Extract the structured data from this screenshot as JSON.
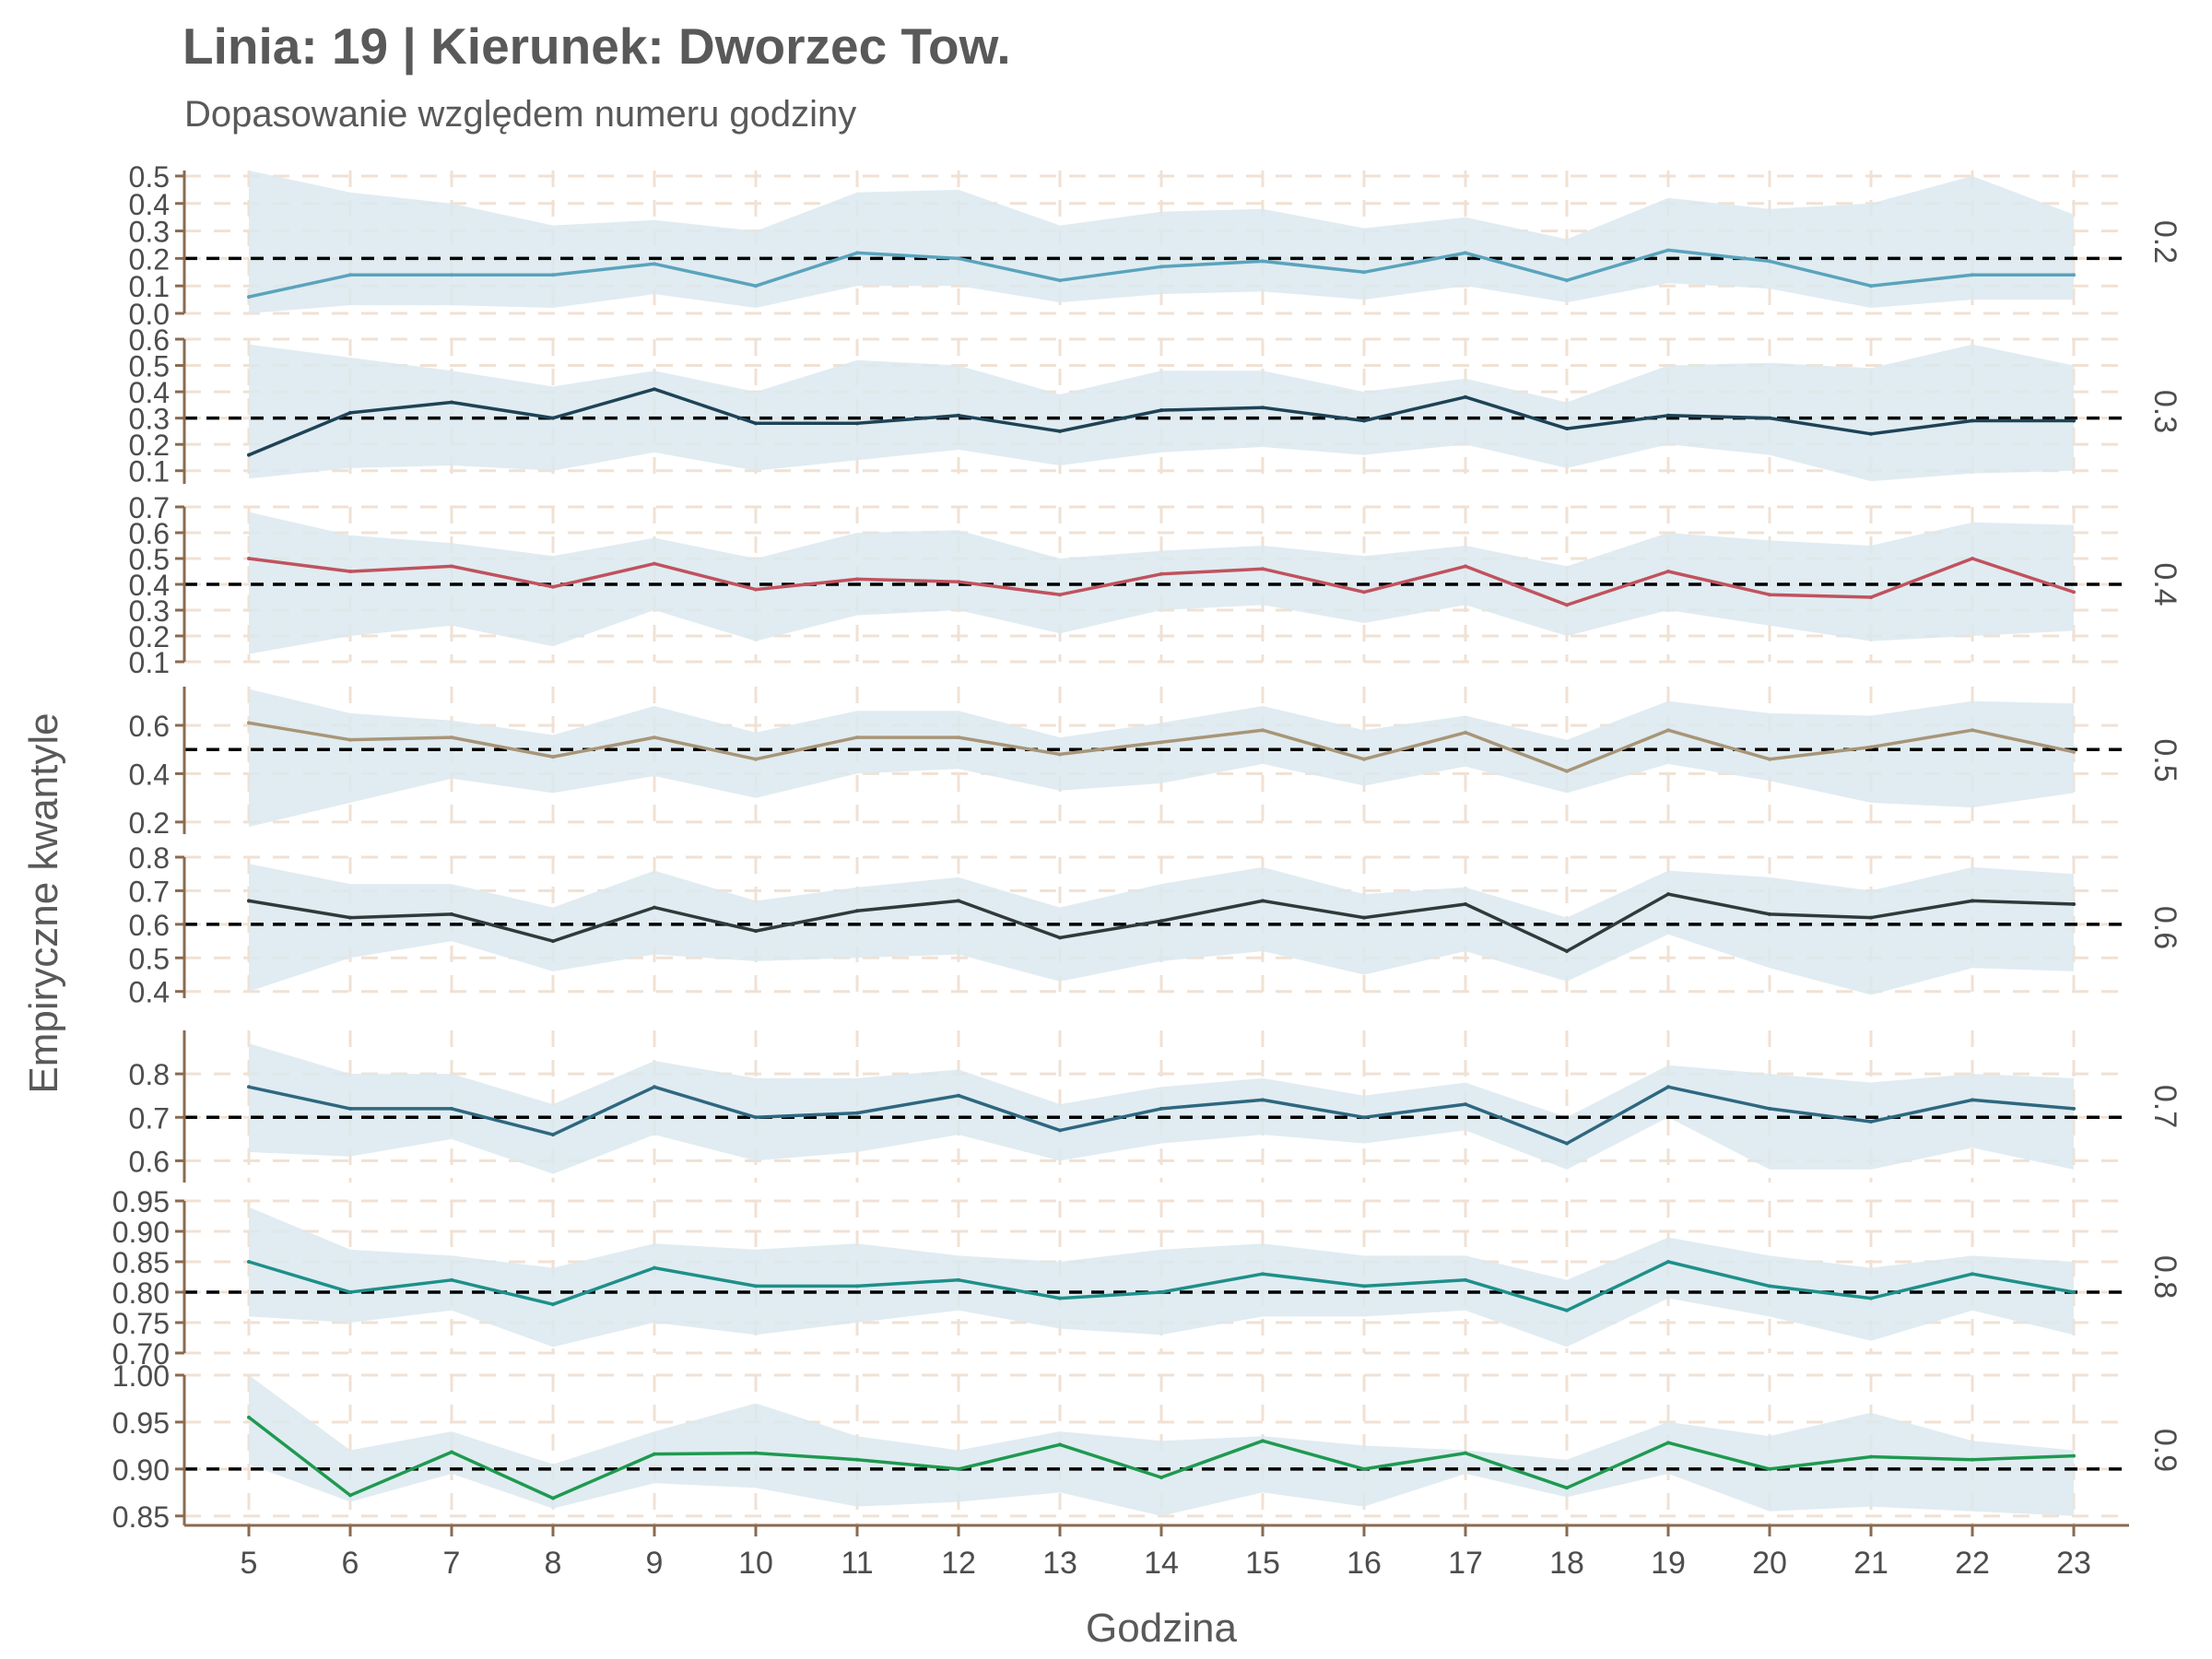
{
  "chart_data": {
    "type": "line",
    "title": "Linia: 19 | Kierunek: Dworzec Tow.",
    "subtitle": "Dopasowanie względem numeru godziny",
    "xlabel": "Godzina",
    "ylabel": "Empiryczne kwantyle",
    "x": [
      5,
      6,
      7,
      8,
      9,
      10,
      11,
      12,
      13,
      14,
      15,
      16,
      17,
      18,
      19,
      20,
      21,
      22,
      23
    ],
    "facet_grid": "dashed",
    "band_color": "#dbe9ee",
    "panels": [
      {
        "label": "0.2",
        "reference": 0.2,
        "color": "#5aa3bd",
        "ylim": [
          0.0,
          0.52
        ],
        "yticks": [
          "0.0",
          "0.1",
          "0.2",
          "0.3",
          "0.4",
          "0.5"
        ],
        "values": [
          0.06,
          0.14,
          0.14,
          0.14,
          0.18,
          0.1,
          0.22,
          0.2,
          0.12,
          0.17,
          0.19,
          0.15,
          0.22,
          0.12,
          0.23,
          0.19,
          0.1,
          0.14,
          0.14
        ],
        "lower": [
          0.0,
          0.03,
          0.03,
          0.02,
          0.07,
          0.02,
          0.1,
          0.1,
          0.04,
          0.07,
          0.08,
          0.05,
          0.1,
          0.04,
          0.11,
          0.09,
          0.02,
          0.05,
          0.05
        ],
        "upper": [
          0.52,
          0.44,
          0.4,
          0.32,
          0.34,
          0.3,
          0.44,
          0.45,
          0.32,
          0.37,
          0.38,
          0.31,
          0.35,
          0.27,
          0.42,
          0.38,
          0.4,
          0.5,
          0.36
        ]
      },
      {
        "label": "0.3",
        "reference": 0.3,
        "color": "#1e4357",
        "ylim": [
          0.05,
          0.6
        ],
        "yticks": [
          "0.1",
          "0.2",
          "0.3",
          "0.4",
          "0.5",
          "0.6"
        ],
        "values": [
          0.16,
          0.32,
          0.36,
          0.3,
          0.41,
          0.28,
          0.28,
          0.31,
          0.25,
          0.33,
          0.34,
          0.29,
          0.38,
          0.26,
          0.31,
          0.3,
          0.24,
          0.29,
          0.29
        ],
        "lower": [
          0.07,
          0.11,
          0.12,
          0.1,
          0.17,
          0.1,
          0.14,
          0.18,
          0.12,
          0.17,
          0.19,
          0.16,
          0.2,
          0.11,
          0.2,
          0.16,
          0.06,
          0.09,
          0.1
        ],
        "upper": [
          0.58,
          0.53,
          0.48,
          0.42,
          0.48,
          0.4,
          0.52,
          0.5,
          0.39,
          0.48,
          0.48,
          0.4,
          0.45,
          0.36,
          0.5,
          0.51,
          0.49,
          0.58,
          0.5
        ]
      },
      {
        "label": "0.4",
        "reference": 0.4,
        "color": "#c0525e",
        "ylim": [
          0.1,
          0.7
        ],
        "yticks": [
          "0.1",
          "0.2",
          "0.3",
          "0.4",
          "0.5",
          "0.6",
          "0.7"
        ],
        "values": [
          0.5,
          0.45,
          0.47,
          0.39,
          0.48,
          0.38,
          0.42,
          0.41,
          0.36,
          0.44,
          0.46,
          0.37,
          0.47,
          0.32,
          0.45,
          0.36,
          0.35,
          0.5,
          0.37
        ],
        "lower": [
          0.13,
          0.2,
          0.24,
          0.16,
          0.3,
          0.18,
          0.28,
          0.3,
          0.21,
          0.3,
          0.32,
          0.25,
          0.32,
          0.2,
          0.3,
          0.24,
          0.18,
          0.2,
          0.22
        ],
        "upper": [
          0.68,
          0.59,
          0.56,
          0.51,
          0.58,
          0.5,
          0.6,
          0.61,
          0.5,
          0.53,
          0.55,
          0.51,
          0.55,
          0.47,
          0.6,
          0.57,
          0.55,
          0.64,
          0.63
        ]
      },
      {
        "label": "0.5",
        "reference": 0.5,
        "color": "#a89578",
        "ylim": [
          0.15,
          0.76
        ],
        "yticks": [
          "0.2",
          "0.4",
          "0.6"
        ],
        "values": [
          0.61,
          0.54,
          0.55,
          0.47,
          0.55,
          0.46,
          0.55,
          0.55,
          0.48,
          0.53,
          0.58,
          0.46,
          0.57,
          0.41,
          0.58,
          0.46,
          0.51,
          0.58,
          0.49
        ],
        "lower": [
          0.18,
          0.28,
          0.38,
          0.32,
          0.39,
          0.3,
          0.4,
          0.42,
          0.33,
          0.36,
          0.44,
          0.35,
          0.43,
          0.32,
          0.44,
          0.37,
          0.28,
          0.26,
          0.32
        ],
        "upper": [
          0.75,
          0.65,
          0.62,
          0.56,
          0.68,
          0.57,
          0.66,
          0.66,
          0.55,
          0.61,
          0.68,
          0.58,
          0.64,
          0.54,
          0.7,
          0.65,
          0.64,
          0.7,
          0.69
        ]
      },
      {
        "label": "0.6",
        "reference": 0.6,
        "color": "#2f3a3a",
        "ylim": [
          0.38,
          0.8
        ],
        "yticks": [
          "0.4",
          "0.5",
          "0.6",
          "0.7",
          "0.8"
        ],
        "values": [
          0.67,
          0.62,
          0.63,
          0.55,
          0.65,
          0.58,
          0.64,
          0.67,
          0.56,
          0.61,
          0.67,
          0.62,
          0.66,
          0.52,
          0.69,
          0.63,
          0.62,
          0.67,
          0.66
        ],
        "lower": [
          0.4,
          0.5,
          0.55,
          0.46,
          0.51,
          0.49,
          0.5,
          0.51,
          0.43,
          0.49,
          0.52,
          0.45,
          0.52,
          0.43,
          0.57,
          0.47,
          0.39,
          0.47,
          0.46
        ],
        "upper": [
          0.78,
          0.72,
          0.72,
          0.65,
          0.76,
          0.67,
          0.71,
          0.74,
          0.65,
          0.72,
          0.77,
          0.69,
          0.71,
          0.62,
          0.76,
          0.74,
          0.7,
          0.77,
          0.75
        ]
      },
      {
        "label": "0.7",
        "reference": 0.7,
        "color": "#2e6780",
        "ylim": [
          0.55,
          0.9
        ],
        "yticks": [
          "0.6",
          "0.7",
          "0.8"
        ],
        "values": [
          0.77,
          0.72,
          0.72,
          0.66,
          0.77,
          0.7,
          0.71,
          0.75,
          0.67,
          0.72,
          0.74,
          0.7,
          0.73,
          0.64,
          0.77,
          0.72,
          0.69,
          0.74,
          0.72
        ],
        "lower": [
          0.62,
          0.61,
          0.65,
          0.57,
          0.66,
          0.6,
          0.62,
          0.66,
          0.6,
          0.64,
          0.66,
          0.64,
          0.67,
          0.58,
          0.7,
          0.58,
          0.58,
          0.63,
          0.58
        ],
        "upper": [
          0.87,
          0.8,
          0.8,
          0.73,
          0.83,
          0.79,
          0.79,
          0.81,
          0.73,
          0.77,
          0.79,
          0.75,
          0.78,
          0.7,
          0.82,
          0.8,
          0.78,
          0.8,
          0.79
        ]
      },
      {
        "label": "0.8",
        "reference": 0.8,
        "color": "#1e8f8a",
        "ylim": [
          0.7,
          0.95
        ],
        "yticks": [
          "0.70",
          "0.75",
          "0.80",
          "0.85",
          "0.90",
          "0.95"
        ],
        "values": [
          0.85,
          0.8,
          0.82,
          0.78,
          0.84,
          0.81,
          0.81,
          0.82,
          0.79,
          0.8,
          0.83,
          0.81,
          0.82,
          0.77,
          0.85,
          0.81,
          0.79,
          0.83,
          0.8
        ],
        "lower": [
          0.76,
          0.75,
          0.77,
          0.71,
          0.75,
          0.73,
          0.75,
          0.77,
          0.74,
          0.73,
          0.76,
          0.76,
          0.77,
          0.71,
          0.79,
          0.76,
          0.72,
          0.77,
          0.73
        ],
        "upper": [
          0.94,
          0.87,
          0.86,
          0.84,
          0.88,
          0.87,
          0.88,
          0.86,
          0.85,
          0.87,
          0.88,
          0.86,
          0.86,
          0.82,
          0.89,
          0.86,
          0.84,
          0.86,
          0.85
        ]
      },
      {
        "label": "0.9",
        "reference": 0.9,
        "color": "#1f9950",
        "ylim": [
          0.84,
          1.0
        ],
        "yticks": [
          "0.85",
          "0.90",
          "0.95",
          "1.00"
        ],
        "values": [
          0.955,
          0.872,
          0.918,
          0.869,
          0.916,
          0.917,
          0.91,
          0.9,
          0.926,
          0.891,
          0.93,
          0.9,
          0.917,
          0.88,
          0.928,
          0.9,
          0.913,
          0.91,
          0.914
        ],
        "lower": [
          0.905,
          0.865,
          0.895,
          0.858,
          0.885,
          0.88,
          0.86,
          0.865,
          0.875,
          0.85,
          0.875,
          0.86,
          0.895,
          0.87,
          0.895,
          0.855,
          0.86,
          0.855,
          0.85
        ],
        "upper": [
          1.0,
          0.92,
          0.94,
          0.905,
          0.94,
          0.97,
          0.935,
          0.92,
          0.94,
          0.93,
          0.935,
          0.925,
          0.92,
          0.91,
          0.95,
          0.935,
          0.96,
          0.93,
          0.92
        ]
      }
    ]
  }
}
